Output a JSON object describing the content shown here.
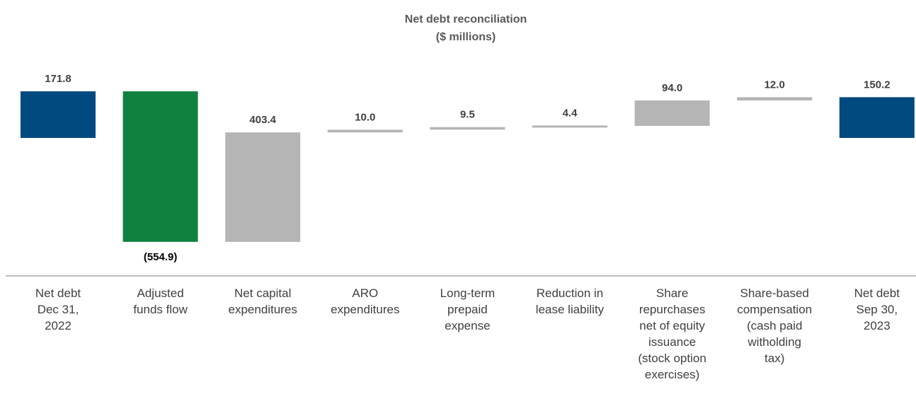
{
  "chart_data": {
    "type": "bar",
    "subtype": "waterfall",
    "title": "Net debt reconciliation",
    "subtitle": "($ millions)",
    "categories": [
      [
        "Net debt",
        "Dec 31,",
        "2022"
      ],
      [
        "Adjusted",
        "funds flow"
      ],
      [
        "Net capital",
        "expenditures"
      ],
      [
        "ARO",
        "expenditures"
      ],
      [
        "Long-term",
        "prepaid",
        "expense"
      ],
      [
        "Reduction in",
        "lease liability"
      ],
      [
        "Share",
        "repurchases",
        "net of equity",
        "issuance",
        "(stock option",
        "exercises)"
      ],
      [
        "Share-based",
        "compensation",
        "(cash paid",
        "witholding",
        "tax)"
      ],
      [
        "Net debt",
        "Sep 30,",
        "2023"
      ]
    ],
    "values": [
      171.8,
      -554.9,
      403.4,
      10.0,
      9.5,
      4.4,
      94.0,
      12.0,
      150.2
    ],
    "labels": [
      "171.8",
      "(554.9)",
      "403.4",
      "10.0",
      "9.5",
      "4.4",
      "94.0",
      "12.0",
      "150.2"
    ],
    "kinds": [
      "total",
      "delta",
      "delta",
      "delta",
      "delta",
      "delta",
      "delta",
      "delta",
      "total"
    ],
    "colors": {
      "total": "#004a80",
      "decrease": "#11813f",
      "increase": "#b5b5b5",
      "axis": "#a6a6a6"
    }
  }
}
